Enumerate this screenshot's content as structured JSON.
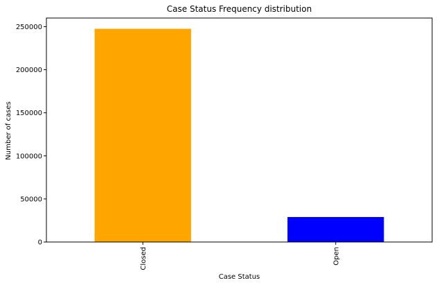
{
  "chart_data": {
    "type": "bar",
    "title": "Case Status Frequency distribution",
    "xlabel": "Case Status",
    "ylabel": "Number of cases",
    "categories": [
      "Closed",
      "Open"
    ],
    "values": [
      247500,
      29000
    ],
    "colors": [
      "#ffa500",
      "#0000ff"
    ],
    "ylim": [
      0,
      260000
    ],
    "yticks": [
      0,
      50000,
      100000,
      150000,
      200000,
      250000
    ],
    "ytick_labels": [
      "0",
      "50000",
      "100000",
      "150000",
      "200000",
      "250000"
    ],
    "grid": false,
    "legend": false,
    "xtick_rotation": "vertical"
  }
}
